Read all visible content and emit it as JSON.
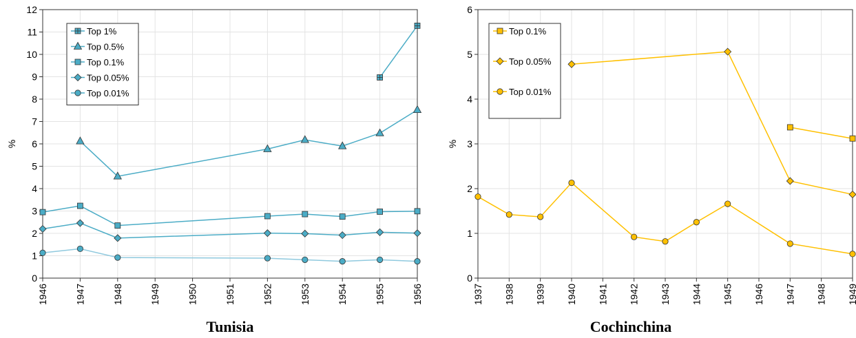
{
  "chart_data": [
    {
      "type": "line",
      "title": "Tunisia",
      "xlabel": "",
      "ylabel": "%",
      "x": [
        1946,
        1947,
        1948,
        1949,
        1950,
        1951,
        1952,
        1953,
        1954,
        1955,
        1956
      ],
      "ylim": [
        0,
        12
      ],
      "y_ticks": [
        0,
        1,
        2,
        3,
        4,
        5,
        6,
        7,
        8,
        9,
        10,
        11,
        12
      ],
      "grid": true,
      "legend_position": "top-left",
      "color": "#4BACC6",
      "series": [
        {
          "name": "Top 1%",
          "marker": "cross-square",
          "values": [
            null,
            null,
            null,
            null,
            null,
            null,
            null,
            null,
            null,
            8.97,
            11.28
          ]
        },
        {
          "name": "Top 0.5%",
          "marker": "triangle",
          "values": [
            null,
            6.12,
            4.55,
            null,
            null,
            null,
            5.77,
            6.18,
            5.9,
            6.48,
            7.52
          ]
        },
        {
          "name": "Top 0.1%",
          "marker": "square",
          "values": [
            2.95,
            3.23,
            2.35,
            null,
            null,
            null,
            2.77,
            2.86,
            2.75,
            2.97,
            2.99
          ]
        },
        {
          "name": "Top 0.05%",
          "marker": "diamond",
          "values": [
            2.2,
            2.46,
            1.79,
            null,
            null,
            null,
            2.01,
            1.99,
            1.92,
            2.05,
            2.01
          ]
        },
        {
          "name": "Top 0.01%",
          "marker": "circle",
          "values": [
            1.13,
            1.31,
            0.92,
            null,
            null,
            null,
            0.89,
            0.82,
            0.75,
            0.82,
            0.75
          ]
        }
      ]
    },
    {
      "type": "line",
      "title": "Cochinchina",
      "xlabel": "",
      "ylabel": "%",
      "x": [
        1937,
        1938,
        1939,
        1940,
        1941,
        1942,
        1943,
        1944,
        1945,
        1946,
        1947,
        1948,
        1949
      ],
      "ylim": [
        0,
        6
      ],
      "y_ticks": [
        0,
        1,
        2,
        3,
        4,
        5,
        6
      ],
      "grid": true,
      "legend_position": "top-left",
      "color": "#FFC000",
      "series": [
        {
          "name": "Top 0.1%",
          "marker": "square",
          "values": [
            null,
            null,
            null,
            null,
            null,
            null,
            null,
            null,
            null,
            null,
            3.37,
            null,
            3.12
          ]
        },
        {
          "name": "Top 0.05%",
          "marker": "diamond",
          "values": [
            null,
            null,
            null,
            4.78,
            null,
            null,
            null,
            null,
            5.06,
            null,
            2.17,
            null,
            1.87
          ]
        },
        {
          "name": "Top 0.01%",
          "marker": "circle",
          "values": [
            1.82,
            1.42,
            1.37,
            2.13,
            null,
            0.92,
            0.82,
            1.25,
            1.66,
            null,
            0.77,
            null,
            0.54
          ]
        }
      ]
    }
  ]
}
